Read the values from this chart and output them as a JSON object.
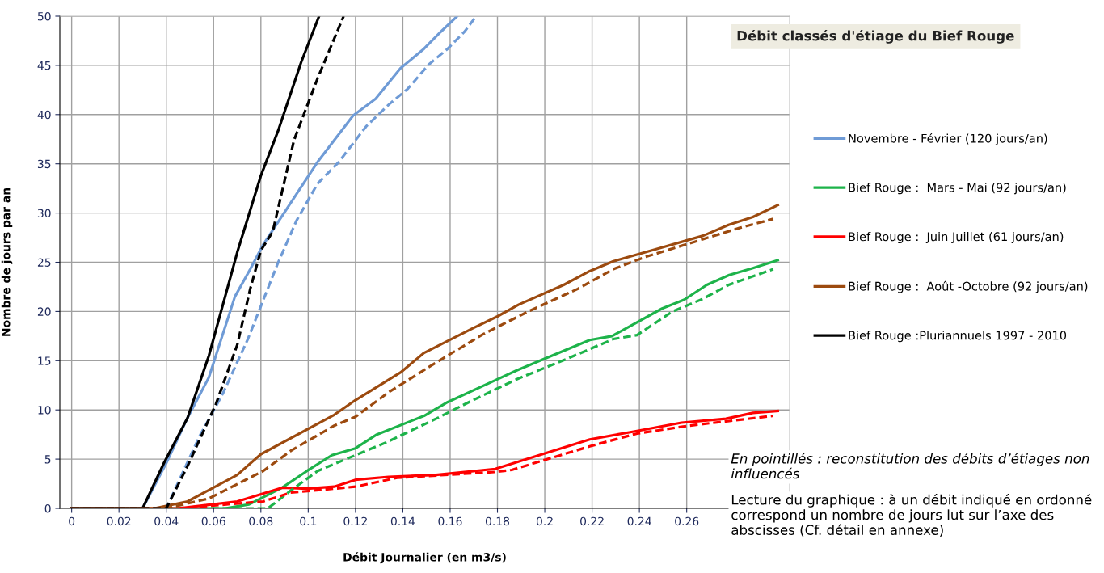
{
  "chart_data": {
    "type": "line",
    "title": "Débit classés d'étiage du Bief Rouge",
    "xlabel": "Débit Journalier (en m3/s)",
    "ylabel": "Nombre de jours par an",
    "xlim": [
      -0.005,
      0.3035
    ],
    "ylim": [
      0,
      50
    ],
    "xticks": [
      0,
      0.02,
      0.04,
      0.06,
      0.08,
      0.1,
      0.12,
      0.14,
      0.16,
      0.18,
      0.2,
      0.22,
      0.24,
      0.26
    ],
    "yticks": [
      0,
      5,
      10,
      15,
      20,
      25,
      30,
      35,
      40,
      45,
      50
    ],
    "grid": true,
    "legend": "right",
    "marker": "none",
    "annotations": [
      "En pointillés : reconstitution des débits d’étiages non influencés",
      "Lecture du graphique : à un débit indiqué en ordonné correspond un nombre de jours lut sur l’axe des abscisses (Cf. détail en annexe)"
    ],
    "series": [
      {
        "name": "Novembre - Février (120 jours/an)",
        "color": "#6f9bd6",
        "line_style": "solid",
        "x": [
          0,
          0.03,
          0.04,
          0.049,
          0.058,
          0.069,
          0.0755,
          0.081,
          0.095,
          0.104,
          0.119,
          0.1285,
          0.139,
          0.149,
          0.156,
          0.163
        ],
        "values": [
          0,
          0,
          4.6,
          9.2,
          13.3,
          21.5,
          24.3,
          26.8,
          31.9,
          35.2,
          39.9,
          41.6,
          44.7,
          46.7,
          48.4,
          50
        ]
      },
      {
        "name": "Bief Rouge :  Mars - Mai (92 jours/an)",
        "color": "#1db34a",
        "line_style": "solid",
        "x": [
          0,
          0.065,
          0.075,
          0.089,
          0.0995,
          0.11,
          0.12,
          0.129,
          0.149,
          0.159,
          0.179,
          0.188,
          0.199,
          0.219,
          0.2284,
          0.2496,
          0.259,
          0.2685,
          0.278,
          0.288,
          0.2985
        ],
        "values": [
          0,
          0,
          0.4,
          2.1,
          3.8,
          5.4,
          6.1,
          7.5,
          9.4,
          10.8,
          13.0,
          14.0,
          15.1,
          17.1,
          17.5,
          20.3,
          21.2,
          22.7,
          23.7,
          24.4,
          25.2
        ]
      },
      {
        "name": "Bief Rouge :  Juin Juillet (61 jours/an)",
        "color": "#ff0000",
        "line_style": "solid",
        "x": [
          0,
          0.045,
          0.07,
          0.089,
          0.0995,
          0.111,
          0.12,
          0.134,
          0.154,
          0.179,
          0.1976,
          0.219,
          0.2376,
          0.2578,
          0.2766,
          0.288,
          0.2985
        ],
        "values": [
          0,
          0,
          0.7,
          2.1,
          2.0,
          2.2,
          2.9,
          3.2,
          3.4,
          4.0,
          5.4,
          7.0,
          7.8,
          8.7,
          9.1,
          9.7,
          9.9
        ]
      },
      {
        "name": "Bief Rouge :  Août -Octobre (92 jours/an)",
        "color": "#9c4a0f",
        "line_style": "solid",
        "x": [
          0,
          0.035,
          0.049,
          0.07,
          0.08,
          0.111,
          0.12,
          0.139,
          0.149,
          0.1696,
          0.18,
          0.189,
          0.208,
          0.219,
          0.229,
          0.248,
          0.267,
          0.2777,
          0.288,
          0.2985
        ],
        "values": [
          0,
          0,
          0.7,
          3.4,
          5.5,
          9.5,
          11.0,
          13.8,
          15.8,
          18.3,
          19.5,
          20.7,
          22.7,
          24.1,
          25.1,
          26.4,
          27.7,
          28.8,
          29.6,
          30.8
        ]
      },
      {
        "name": "Bief Rouge :Pluriannuels 1997 - 2010",
        "color": "#000000",
        "line_style": "solid",
        "x": [
          0,
          0.03,
          0.039,
          0.049,
          0.058,
          0.07,
          0.08,
          0.0875,
          0.097,
          0.1046
        ],
        "values": [
          0,
          0,
          4.6,
          9.2,
          15.5,
          26,
          33.8,
          38.5,
          45.3,
          50
        ]
      },
      {
        "color": "#6f9bd6",
        "line_style": "dashed",
        "x": [
          0,
          0.04,
          0.054,
          0.064,
          0.0745,
          0.087,
          0.095,
          0.104,
          0.113,
          0.1245,
          0.134,
          0.142,
          0.151,
          0.159,
          0.166,
          0.171
        ],
        "values": [
          0,
          0,
          7.3,
          11.7,
          17.2,
          24.8,
          29.2,
          33.0,
          35.2,
          38.8,
          41,
          42.6,
          45.1,
          46.7,
          48.4,
          50
        ]
      },
      {
        "color": "#1db34a",
        "line_style": "dashed",
        "x": [
          0,
          0.083,
          0.0926,
          0.104,
          0.12,
          0.133,
          0.154,
          0.168,
          0.188,
          0.2095,
          0.229,
          0.239,
          0.254,
          0.267,
          0.2777,
          0.2966
        ],
        "values": [
          0,
          0,
          1.8,
          3.8,
          5.4,
          6.7,
          9.1,
          10.8,
          13.1,
          15.2,
          17.2,
          17.6,
          20.0,
          21.3,
          22.7,
          24.3
        ]
      },
      {
        "color": "#ff0000",
        "line_style": "dashed",
        "x": [
          0,
          0.045,
          0.081,
          0.0926,
          0.111,
          0.12,
          0.1376,
          0.179,
          0.186,
          0.219,
          0.239,
          0.261,
          0.2825,
          0.2966
        ],
        "values": [
          0,
          0,
          0.7,
          1.6,
          2.0,
          2.2,
          3.1,
          3.7,
          3.9,
          6.3,
          7.6,
          8.4,
          9.0,
          9.4
        ]
      },
      {
        "color": "#9c4a0f",
        "line_style": "dashed",
        "x": [
          0,
          0.04,
          0.058,
          0.081,
          0.093,
          0.111,
          0.12,
          0.134,
          0.154,
          0.174,
          0.193,
          0.214,
          0.229,
          0.242,
          0.2636,
          0.2825,
          0.2966
        ],
        "values": [
          0,
          0,
          1.0,
          3.8,
          5.9,
          8.4,
          9.3,
          11.8,
          14.8,
          17.7,
          20.0,
          22.3,
          24.3,
          25.5,
          27.1,
          28.5,
          29.4
        ]
      },
      {
        "color": "#000000",
        "line_style": "dashed",
        "x": [
          0,
          0.04,
          0.049,
          0.061,
          0.07,
          0.0755,
          0.08,
          0.085,
          0.094,
          0.104,
          0.115
        ],
        "values": [
          0,
          0,
          4.3,
          10.6,
          16.6,
          22.3,
          26.2,
          28.1,
          37.4,
          43.7,
          50
        ]
      }
    ]
  }
}
